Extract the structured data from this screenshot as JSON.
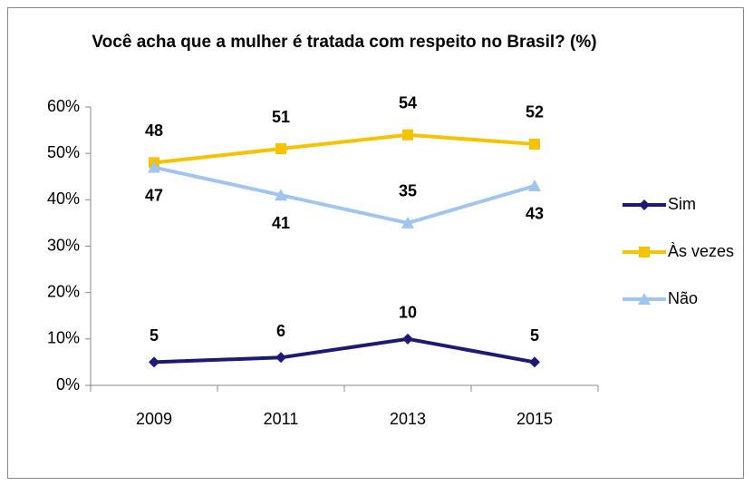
{
  "chart_data": {
    "type": "line",
    "title": "Você acha que a mulher é tratada com respeito no Brasil? (%)",
    "categories": [
      "2009",
      "2011",
      "2013",
      "2015"
    ],
    "series": [
      {
        "name": "Sim",
        "color": "#1c1a78",
        "marker": "diamond",
        "values": [
          5,
          6,
          10,
          5
        ]
      },
      {
        "name": "Às vezes",
        "color": "#f7c200",
        "marker": "square",
        "values": [
          48,
          51,
          54,
          52
        ]
      },
      {
        "name": "Não",
        "color": "#9fc5f0",
        "marker": "triangle",
        "values": [
          47,
          41,
          35,
          43
        ]
      }
    ],
    "ylim": [
      0,
      60
    ],
    "yticks": [
      {
        "value": 0,
        "label": "0%"
      },
      {
        "value": 10,
        "label": "10%"
      },
      {
        "value": 20,
        "label": "20%"
      },
      {
        "value": 30,
        "label": "30%"
      },
      {
        "value": 40,
        "label": "40%"
      },
      {
        "value": 50,
        "label": "50%"
      },
      {
        "value": 60,
        "label": "60%"
      }
    ],
    "grid": false,
    "legend": "right"
  }
}
